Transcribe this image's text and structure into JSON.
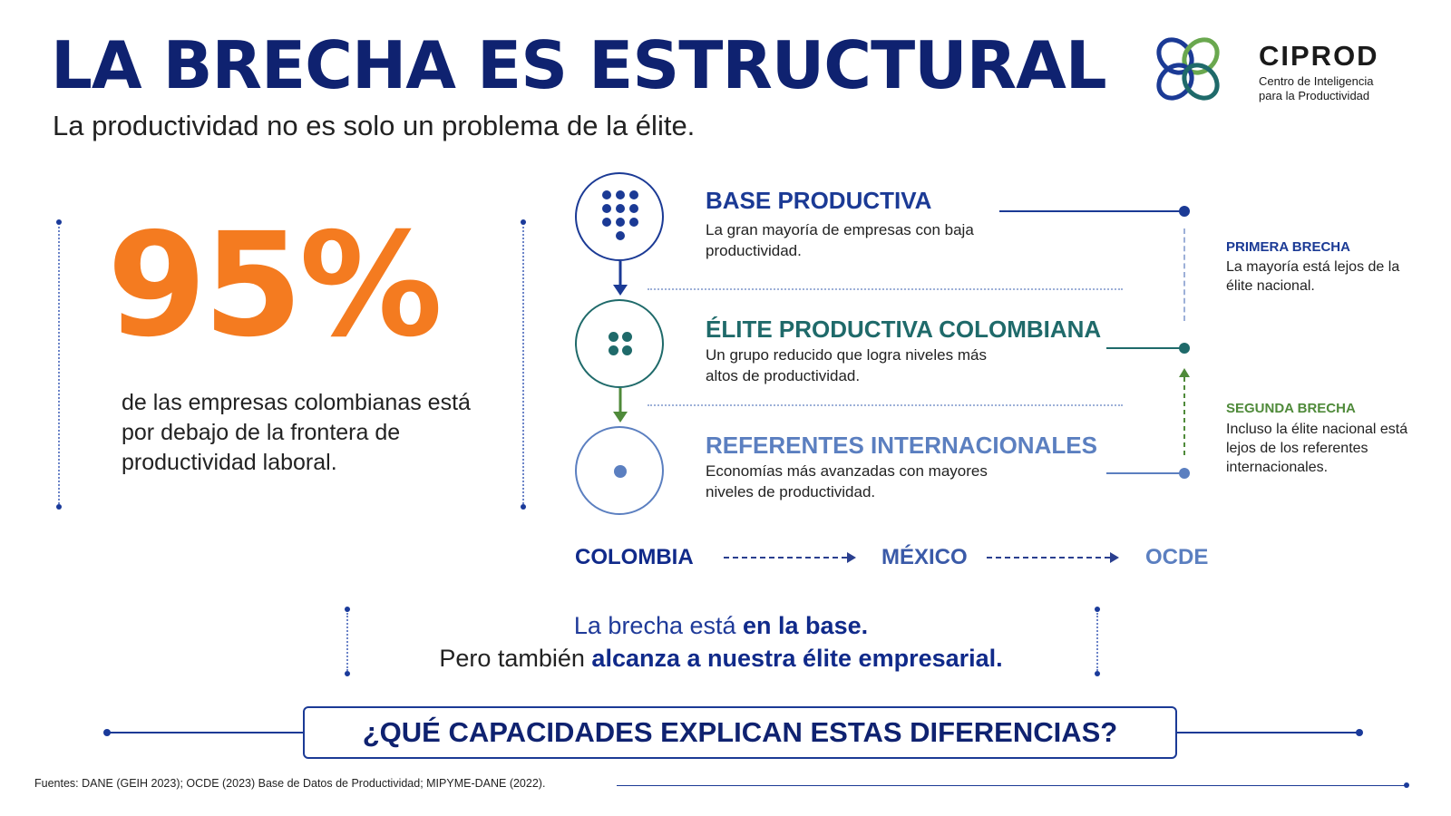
{
  "header": {
    "title": "LA BRECHA ES ESTRUCTURAL",
    "subtitle": "La productividad no es solo un problema de la élite."
  },
  "logo": {
    "name": "CIPROD",
    "line1": "Centro de Inteligencia",
    "line2": "para la Productividad",
    "colors": {
      "blue": "#1b3a95",
      "green": "#6aa84f",
      "teal": "#1f6a6a"
    }
  },
  "stat": {
    "value": "95%",
    "description": "de las empresas colombianas está por debajo de la frontera de productividad laboral.",
    "color": "#f47b20"
  },
  "levels": [
    {
      "title": "BASE PRODUCTIVA",
      "description": "La gran mayoría de empresas con baja productividad.",
      "color": "#1b3a95"
    },
    {
      "title": "ÉLITE PRODUCTIVA COLOMBIANA",
      "description": "Un grupo reducido que logra niveles más altos de productividad.",
      "color": "#1f6a6a"
    },
    {
      "title": "REFERENTES INTERNACIONALES",
      "description": "Economías más avanzadas con mayores niveles de productividad.",
      "color": "#5b7fc0"
    }
  ],
  "gaps": [
    {
      "title": "PRIMERA BRECHA",
      "description": "La mayoría está lejos de la élite nacional.",
      "color": "#1b3a95"
    },
    {
      "title": "SEGUNDA BRECHA",
      "description": "Incluso la élite nacional está lejos de los referentes internacionales.",
      "color": "#4f8a3a"
    }
  ],
  "countries": [
    {
      "name": "COLOMBIA",
      "color": "#102a8a"
    },
    {
      "name": "MÉXICO",
      "color": "#3a5aa8"
    },
    {
      "name": "OCDE",
      "color": "#5b7fc0"
    }
  ],
  "message": {
    "line1_plain": "La brecha está ",
    "line1_bold": "en la base.",
    "line2_plain": "Pero también ",
    "line2_bold": "alcanza a nuestra élite empresarial."
  },
  "cta": "¿QUÉ CAPACIDADES EXPLICAN ESTAS DIFERENCIAS?",
  "sources": "Fuentes: DANE (GEIH 2023); OCDE (2023) Base de Datos de Productividad; MIPYME-DANE (2022)."
}
